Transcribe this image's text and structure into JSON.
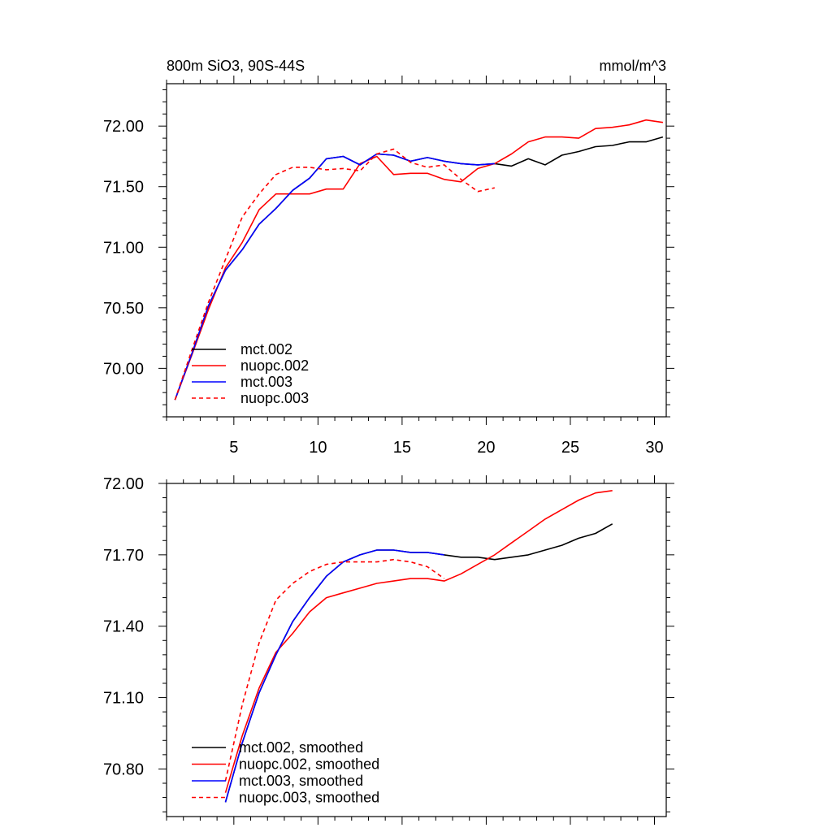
{
  "chart_data": [
    {
      "type": "line",
      "title": "800m SiO3, 90S-44S",
      "units": "mmol/m^3",
      "xlabel": "",
      "ylabel": "",
      "xlim": [
        1,
        30.7
      ],
      "ylim": [
        69.6,
        72.35
      ],
      "x_ticks": [
        5,
        10,
        15,
        20,
        25,
        30
      ],
      "y_ticks": [
        70.0,
        70.5,
        71.0,
        71.5,
        72.0
      ],
      "y_tick_labels": [
        "70.00",
        "70.50",
        "71.00",
        "71.50",
        "72.00"
      ],
      "legend_position": "bottom-left",
      "series": [
        {
          "name": "mct.002",
          "color": "#000000",
          "dash": "solid",
          "x": [
            1.5,
            2.5,
            3.5,
            4.5,
            5.5,
            6.5,
            7.5,
            8.5,
            9.5,
            10.5,
            11.5,
            12.5,
            13.5,
            14.5,
            15.5,
            16.5,
            17.5,
            18.5,
            19.5,
            20.5,
            21.5,
            22.5,
            23.5,
            24.5,
            25.5,
            26.5,
            27.5,
            28.5,
            29.5,
            30.5
          ],
          "values": [
            69.74,
            70.12,
            70.52,
            70.81,
            70.98,
            71.19,
            71.32,
            71.47,
            71.57,
            71.73,
            71.75,
            71.68,
            71.77,
            71.76,
            71.71,
            71.74,
            71.71,
            71.69,
            71.68,
            71.69,
            71.67,
            71.73,
            71.68,
            71.76,
            71.79,
            71.83,
            71.84,
            71.87,
            71.87,
            71.91
          ]
        },
        {
          "name": "nuopc.002",
          "color": "#ff0000",
          "dash": "solid",
          "x": [
            1.5,
            2.5,
            3.5,
            4.5,
            5.5,
            6.5,
            7.5,
            8.5,
            9.5,
            10.5,
            11.5,
            12.5,
            13.5,
            14.5,
            15.5,
            16.5,
            17.5,
            18.5,
            19.5,
            20.5,
            21.5,
            22.5,
            23.5,
            24.5,
            25.5,
            26.5,
            27.5,
            28.5,
            29.5,
            30.5
          ],
          "values": [
            69.74,
            70.11,
            70.49,
            70.83,
            71.04,
            71.31,
            71.44,
            71.44,
            71.44,
            71.48,
            71.48,
            71.69,
            71.75,
            71.6,
            71.61,
            71.61,
            71.56,
            71.54,
            71.65,
            71.69,
            71.77,
            71.87,
            71.91,
            71.91,
            71.9,
            71.98,
            71.99,
            72.01,
            72.05,
            72.03
          ]
        },
        {
          "name": "mct.003",
          "color": "#0000ff",
          "dash": "solid",
          "x": [
            1.5,
            2.5,
            3.5,
            4.5,
            5.5,
            6.5,
            7.5,
            8.5,
            9.5,
            10.5,
            11.5,
            12.5,
            13.5,
            14.5,
            15.5,
            16.5,
            17.5,
            18.5,
            19.5,
            20.5
          ],
          "values": [
            69.74,
            70.12,
            70.52,
            70.81,
            70.98,
            71.19,
            71.32,
            71.47,
            71.57,
            71.73,
            71.75,
            71.68,
            71.77,
            71.76,
            71.71,
            71.74,
            71.71,
            71.69,
            71.68,
            71.69
          ]
        },
        {
          "name": "nuopc.003",
          "color": "#ff0000",
          "dash": "dashed",
          "x": [
            1.5,
            2.5,
            3.5,
            4.5,
            5.5,
            6.5,
            7.5,
            8.5,
            9.5,
            10.5,
            11.5,
            12.5,
            13.5,
            14.5,
            15.5,
            16.5,
            17.5,
            18.5,
            19.5,
            20.5
          ],
          "values": [
            69.74,
            70.15,
            70.55,
            70.9,
            71.25,
            71.44,
            71.6,
            71.66,
            71.66,
            71.64,
            71.65,
            71.63,
            71.77,
            71.81,
            71.7,
            71.66,
            71.68,
            71.56,
            71.46,
            71.49
          ]
        }
      ]
    },
    {
      "type": "line",
      "title": "",
      "xlabel": "",
      "ylabel": "",
      "xlim": [
        1,
        30.7
      ],
      "ylim": [
        70.6,
        72.0
      ],
      "x_ticks": [
        5,
        10,
        15,
        20,
        25,
        30
      ],
      "y_ticks": [
        70.8,
        71.1,
        71.4,
        71.7,
        72.0
      ],
      "y_tick_labels": [
        "70.80",
        "71.10",
        "71.40",
        "71.70",
        "72.00"
      ],
      "legend_position": "bottom-left",
      "series": [
        {
          "name": "mct.002, smoothed",
          "color": "#000000",
          "dash": "solid",
          "x": [
            4.5,
            5.5,
            6.5,
            7.5,
            8.5,
            9.5,
            10.5,
            11.5,
            12.5,
            13.5,
            14.5,
            15.5,
            16.5,
            17.5,
            18.5,
            19.5,
            20.5,
            21.5,
            22.5,
            23.5,
            24.5,
            25.5,
            26.5,
            27.5
          ],
          "values": [
            70.66,
            70.91,
            71.12,
            71.28,
            71.42,
            71.52,
            71.61,
            71.67,
            71.7,
            71.72,
            71.72,
            71.71,
            71.71,
            71.7,
            71.69,
            71.69,
            71.68,
            71.69,
            71.7,
            71.72,
            71.74,
            71.77,
            71.79,
            71.83
          ]
        },
        {
          "name": "nuopc.002, smoothed",
          "color": "#ff0000",
          "dash": "solid",
          "x": [
            4.5,
            5.5,
            6.5,
            7.5,
            8.5,
            9.5,
            10.5,
            11.5,
            12.5,
            13.5,
            14.5,
            15.5,
            16.5,
            17.5,
            18.5,
            19.5,
            20.5,
            21.5,
            22.5,
            23.5,
            24.5,
            25.5,
            26.5,
            27.5
          ],
          "values": [
            70.7,
            70.94,
            71.14,
            71.29,
            71.37,
            71.46,
            71.52,
            71.54,
            71.56,
            71.58,
            71.59,
            71.6,
            71.6,
            71.59,
            71.62,
            71.66,
            71.7,
            71.75,
            71.8,
            71.85,
            71.89,
            71.93,
            71.96,
            71.97
          ]
        },
        {
          "name": "mct.003, smoothed",
          "color": "#0000ff",
          "dash": "solid",
          "x": [
            4.5,
            5.5,
            6.5,
            7.5,
            8.5,
            9.5,
            10.5,
            11.5,
            12.5,
            13.5,
            14.5,
            15.5,
            16.5,
            17.5
          ],
          "values": [
            70.66,
            70.91,
            71.12,
            71.28,
            71.42,
            71.52,
            71.61,
            71.67,
            71.7,
            71.72,
            71.72,
            71.71,
            71.71,
            71.7
          ]
        },
        {
          "name": "nuopc.003, smoothed",
          "color": "#ff0000",
          "dash": "dashed",
          "x": [
            4.5,
            5.5,
            6.5,
            7.5,
            8.5,
            9.5,
            10.5,
            11.5,
            12.5,
            13.5,
            14.5,
            15.5,
            16.5,
            17.5
          ],
          "values": [
            70.75,
            71.07,
            71.33,
            71.51,
            71.58,
            71.63,
            71.66,
            71.67,
            71.67,
            71.67,
            71.68,
            71.67,
            71.65,
            71.6
          ]
        }
      ]
    }
  ]
}
